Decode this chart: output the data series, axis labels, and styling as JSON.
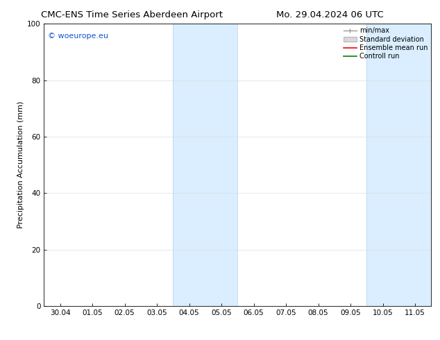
{
  "title_left": "CMC-ENS Time Series Aberdeen Airport",
  "title_right": "Mo. 29.04.2024 06 UTC",
  "ylabel": "Precipitation Accumulation (mm)",
  "ylim": [
    0,
    100
  ],
  "yticks": [
    0,
    20,
    40,
    60,
    80,
    100
  ],
  "xtick_labels": [
    "30.04",
    "01.05",
    "02.05",
    "03.05",
    "04.05",
    "05.05",
    "06.05",
    "07.05",
    "08.05",
    "09.05",
    "10.05",
    "11.05"
  ],
  "shaded_regions": [
    {
      "xstart": 4.0,
      "xend": 6.0
    },
    {
      "xstart": 10.0,
      "xend": 12.0
    }
  ],
  "shaded_color": "#daeeff",
  "shaded_edgecolor": "#b0d0ee",
  "watermark_text": "© woeurope.eu",
  "watermark_color": "#1155cc",
  "legend_items": [
    {
      "label": "min/max",
      "color": "#aaaaaa"
    },
    {
      "label": "Standard deviation",
      "color": "#cccccc"
    },
    {
      "label": "Ensemble mean run",
      "color": "red"
    },
    {
      "label": "Controll run",
      "color": "green"
    }
  ],
  "bg_color": "#ffffff",
  "spine_color": "#000000",
  "tick_fontsize": 7.5,
  "label_fontsize": 8,
  "title_fontsize": 9.5,
  "legend_fontsize": 7,
  "watermark_fontsize": 8
}
